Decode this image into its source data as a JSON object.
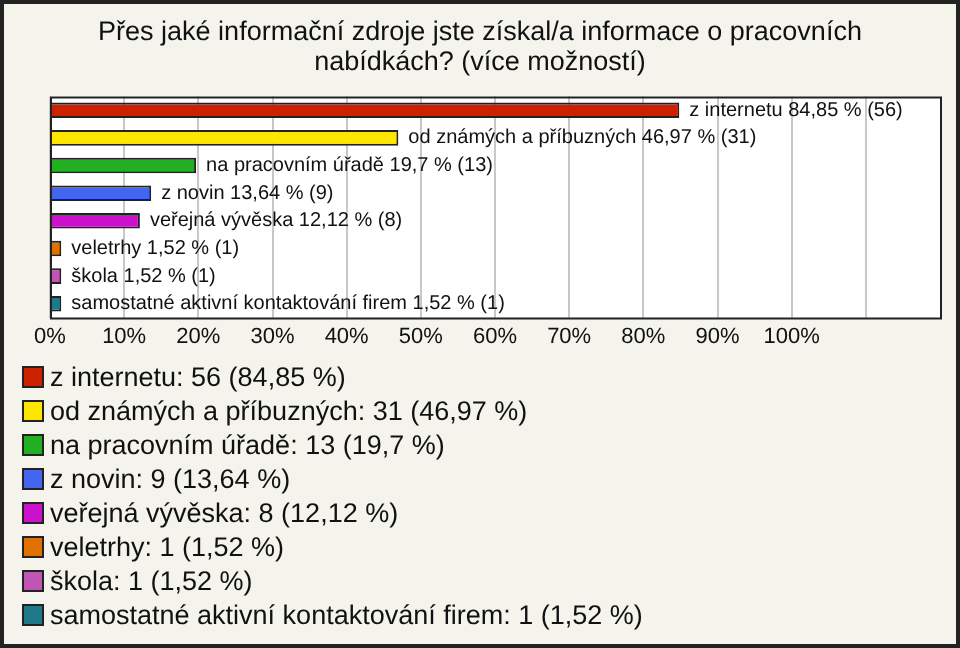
{
  "chart_data": {
    "type": "bar",
    "orientation": "horizontal",
    "stacked": true,
    "title": "Přes jaké informační zdroje jste získal/a informace o pracovních nabídkách? (více možností)",
    "categories": [
      null,
      null,
      null,
      null,
      null,
      null,
      null,
      null
    ],
    "xlim": [
      0,
      120
    ],
    "xticks": [
      {
        "value": 0,
        "label": "0%"
      },
      {
        "value": 10,
        "label": "10%"
      },
      {
        "value": 20,
        "label": "20%"
      },
      {
        "value": 30,
        "label": "30%"
      },
      {
        "value": 40,
        "label": "40%"
      },
      {
        "value": 50,
        "label": "50%"
      },
      {
        "value": 60,
        "label": "60%"
      },
      {
        "value": 70,
        "label": "70%"
      },
      {
        "value": 80,
        "label": "80%"
      },
      {
        "value": 90,
        "label": "90%"
      },
      {
        "value": 100,
        "label": "100%"
      },
      {
        "value": 110,
        "label": null
      }
    ],
    "grid": "x",
    "legend": "bottom",
    "series": [
      {
        "name": "z internetu: 56 (84,85 %)",
        "color": "#cc2200",
        "values": [
          84.85,
          null,
          null,
          null,
          null,
          null,
          null,
          null
        ],
        "value_labels": [
          "z internetu 84,85 % (56)",
          null,
          null,
          null,
          null,
          null,
          null,
          null
        ]
      },
      {
        "name": "od známých a příbuzných: 31 (46,97 %)",
        "color": "#ffe600",
        "values": [
          null,
          46.97,
          null,
          null,
          null,
          null,
          null,
          null
        ],
        "value_labels": [
          null,
          "od známých a příbuzných 46,97 % (31)",
          null,
          null,
          null,
          null,
          null,
          null
        ]
      },
      {
        "name": "na pracovním úřadě: 13 (19,7 %)",
        "color": "#22b022",
        "values": [
          null,
          null,
          19.7,
          null,
          null,
          null,
          null,
          null
        ],
        "value_labels": [
          null,
          null,
          "na pracovním úřadě 19,7 % (13)",
          null,
          null,
          null,
          null,
          null
        ]
      },
      {
        "name": "z novin: 9 (13,64 %)",
        "color": "#4466ee",
        "values": [
          null,
          null,
          null,
          13.64,
          null,
          null,
          null,
          null
        ],
        "value_labels": [
          null,
          null,
          null,
          "z novin 13,64 % (9)",
          null,
          null,
          null,
          null
        ]
      },
      {
        "name": "veřejná vývěska: 8 (12,12 %)",
        "color": "#cc11cc",
        "values": [
          null,
          null,
          null,
          null,
          12.12,
          null,
          null,
          null
        ],
        "value_labels": [
          null,
          null,
          null,
          null,
          "veřejná vývěska 12,12 % (8)",
          null,
          null,
          null
        ]
      },
      {
        "name": "veletrhy: 1 (1,52 %)",
        "color": "#e07000",
        "values": [
          null,
          null,
          null,
          null,
          null,
          1.52,
          null,
          null
        ],
        "value_labels": [
          null,
          null,
          null,
          null,
          null,
          "veletrhy 1,52 % (1)",
          null,
          null
        ]
      },
      {
        "name": "škola: 1 (1,52 %)",
        "color": "#c055b5",
        "values": [
          null,
          null,
          null,
          null,
          null,
          null,
          1.52,
          null
        ],
        "value_labels": [
          null,
          null,
          null,
          null,
          null,
          null,
          "škola 1,52 % (1)",
          null
        ]
      },
      {
        "name": "samostatné aktivní kontaktování firem: 1 (1,52 %)",
        "color": "#1f7a8a",
        "values": [
          null,
          null,
          null,
          null,
          null,
          null,
          null,
          1.52
        ],
        "value_labels": [
          null,
          null,
          null,
          null,
          null,
          null,
          null,
          "samostatné aktivní kontaktování firem 1,52 % (1)"
        ]
      }
    ]
  }
}
